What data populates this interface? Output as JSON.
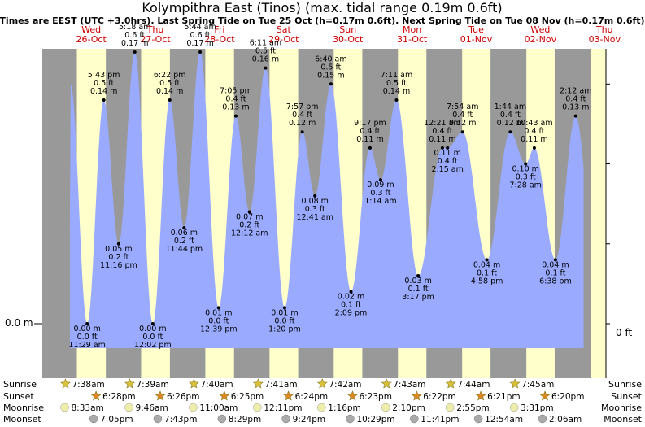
{
  "chart_data": {
    "type": "area",
    "title": "Kolympithra East (Tinos) (max. tidal range 0.19m 0.6ft)",
    "subtitle": "Times are EEST (UTC +3.0hrs). Last Spring Tide on Tue 25 Oct (h=0.17m 0.6ft). Next Spring Tide on Tue 08 Nov (h=0.17m 0.6ft)",
    "ylabel_left": "0.0 m",
    "ylabel_right": "0 ft",
    "colors": {
      "night": "#999999",
      "day": "#ffffcc",
      "water": "#99aaff",
      "header_day": "#cc0000",
      "sun_star": "#d9c23a",
      "set_star": "#d98a26",
      "moon_light": "#eeeeaa",
      "moon_dark": "#aaaaaa"
    },
    "days": [
      {
        "dow": "Wed",
        "date": "26-Oct"
      },
      {
        "dow": "Thu",
        "date": "27-Oct"
      },
      {
        "dow": "Fri",
        "date": "28-Oct"
      },
      {
        "dow": "Sat",
        "date": "29-Oct"
      },
      {
        "dow": "Sun",
        "date": "30-Oct"
      },
      {
        "dow": "Mon",
        "date": "31-Oct"
      },
      {
        "dow": "Tue",
        "date": "01-Nov"
      },
      {
        "dow": "Wed",
        "date": "02-Nov"
      },
      {
        "dow": "Thu",
        "date": "03-Nov"
      }
    ],
    "tides": [
      {
        "t": "2022-10-26 11:29",
        "h": 0.0,
        "m": "0.00 m",
        "ft": "0.0 ft",
        "time": "11:29 am",
        "type": "low"
      },
      {
        "t": "2022-10-26 17:43",
        "h": 0.14,
        "m": "0.14 m",
        "ft": "0.5 ft",
        "time": "5:43 pm",
        "type": "high"
      },
      {
        "t": "2022-10-26 23:16",
        "h": 0.05,
        "m": "0.05 m",
        "ft": "0.2 ft",
        "time": "11:16 pm",
        "type": "low"
      },
      {
        "t": "2022-10-27 05:18",
        "h": 0.17,
        "m": "0.17 m",
        "ft": "0.6 ft",
        "time": "5:18 am",
        "type": "high"
      },
      {
        "t": "2022-10-27 12:02",
        "h": 0.0,
        "m": "0.00 m",
        "ft": "0.0 ft",
        "time": "12:02 pm",
        "type": "low"
      },
      {
        "t": "2022-10-27 18:22",
        "h": 0.14,
        "m": "0.14 m",
        "ft": "0.5 ft",
        "time": "6:22 pm",
        "type": "high"
      },
      {
        "t": "2022-10-27 23:44",
        "h": 0.06,
        "m": "0.06 m",
        "ft": "0.2 ft",
        "time": "11:44 pm",
        "type": "low"
      },
      {
        "t": "2022-10-28 05:44",
        "h": 0.17,
        "m": "0.17 m",
        "ft": "0.6 ft",
        "time": "5:44 am",
        "type": "high"
      },
      {
        "t": "2022-10-28 12:39",
        "h": 0.01,
        "m": "0.01 m",
        "ft": "0.0 ft",
        "time": "12:39 pm",
        "type": "low"
      },
      {
        "t": "2022-10-28 19:05",
        "h": 0.13,
        "m": "0.13 m",
        "ft": "0.4 ft",
        "time": "7:05 pm",
        "type": "high"
      },
      {
        "t": "2022-10-29 00:12",
        "h": 0.07,
        "m": "0.07 m",
        "ft": "0.2 ft",
        "time": "12:12 am",
        "type": "low"
      },
      {
        "t": "2022-10-29 06:11",
        "h": 0.16,
        "m": "0.16 m",
        "ft": "0.5 ft",
        "time": "6:11 am",
        "type": "high"
      },
      {
        "t": "2022-10-29 13:20",
        "h": 0.01,
        "m": "0.01 m",
        "ft": "0.0 ft",
        "time": "1:20 pm",
        "type": "low"
      },
      {
        "t": "2022-10-29 19:57",
        "h": 0.12,
        "m": "0.12 m",
        "ft": "0.4 ft",
        "time": "7:57 pm",
        "type": "high"
      },
      {
        "t": "2022-10-30 00:41",
        "h": 0.08,
        "m": "0.08 m",
        "ft": "0.3 ft",
        "time": "12:41 am",
        "type": "low"
      },
      {
        "t": "2022-10-30 06:40",
        "h": 0.15,
        "m": "0.15 m",
        "ft": "0.5 ft",
        "time": "6:40 am",
        "type": "high"
      },
      {
        "t": "2022-10-30 14:09",
        "h": 0.02,
        "m": "0.02 m",
        "ft": "0.1 ft",
        "time": "2:09 pm",
        "type": "low"
      },
      {
        "t": "2022-10-30 21:17",
        "h": 0.11,
        "m": "0.11 m",
        "ft": "0.4 ft",
        "time": "9:17 pm",
        "type": "high"
      },
      {
        "t": "2022-10-31 01:14",
        "h": 0.09,
        "m": "0.09 m",
        "ft": "0.3 ft",
        "time": "1:14 am",
        "type": "low"
      },
      {
        "t": "2022-10-31 07:11",
        "h": 0.14,
        "m": "0.14 m",
        "ft": "0.5 ft",
        "time": "7:11 am",
        "type": "high"
      },
      {
        "t": "2022-10-31 15:17",
        "h": 0.03,
        "m": "0.03 m",
        "ft": "0.1 ft",
        "time": "3:17 pm",
        "type": "low"
      },
      {
        "t": "2022-11-01 00:21",
        "h": 0.11,
        "m": "0.11 m",
        "ft": "0.4 ft",
        "time": "12:21 am",
        "type": "high"
      },
      {
        "t": "2022-11-01 02:15",
        "h": 0.11,
        "m": "0.11 m",
        "ft": "0.4 ft",
        "time": "2:15 am",
        "type": "low"
      },
      {
        "t": "2022-11-01 07:54",
        "h": 0.12,
        "m": "0.12 m",
        "ft": "0.4 ft",
        "time": "7:54 am",
        "type": "high"
      },
      {
        "t": "2022-11-01 16:58",
        "h": 0.04,
        "m": "0.04 m",
        "ft": "0.1 ft",
        "time": "4:58 pm",
        "type": "low"
      },
      {
        "t": "2022-11-02 01:44",
        "h": 0.12,
        "m": "0.12 m",
        "ft": "0.4 ft",
        "time": "1:44 am",
        "type": "high"
      },
      {
        "t": "2022-11-02 07:28",
        "h": 0.1,
        "m": "0.10 m",
        "ft": "0.3 ft",
        "time": "7:28 am",
        "type": "low"
      },
      {
        "t": "2022-11-02 10:43",
        "h": 0.11,
        "m": "0.11 m",
        "ft": "0.4 ft",
        "time": "10:43 am",
        "type": "high"
      },
      {
        "t": "2022-11-02 18:38",
        "h": 0.04,
        "m": "0.04 m",
        "ft": "0.1 ft",
        "time": "6:38 pm",
        "type": "low"
      },
      {
        "t": "2022-11-03 02:12",
        "h": 0.13,
        "m": "0.13 m",
        "ft": "0.4 ft",
        "time": "2:12 am",
        "type": "high"
      }
    ],
    "astro": [
      {
        "sunrise": "7:38am",
        "sunset": "6:28pm",
        "moonrise": "8:33am",
        "moonset": "7:05pm"
      },
      {
        "sunrise": "7:39am",
        "sunset": "6:26pm",
        "moonrise": "9:46am",
        "moonset": "7:43pm"
      },
      {
        "sunrise": "7:40am",
        "sunset": "6:25pm",
        "moonrise": "11:00am",
        "moonset": "8:29pm"
      },
      {
        "sunrise": "7:41am",
        "sunset": "6:24pm",
        "moonrise": "12:11pm",
        "moonset": "9:24pm"
      },
      {
        "sunrise": "7:42am",
        "sunset": "6:23pm",
        "moonrise": "1:16pm",
        "moonset": "10:29pm"
      },
      {
        "sunrise": "7:43am",
        "sunset": "6:22pm",
        "moonrise": "2:10pm",
        "moonset": "11:41pm"
      },
      {
        "sunrise": "7:44am",
        "sunset": "6:21pm",
        "moonrise": "2:55pm",
        "moonset": "12:54am"
      },
      {
        "sunrise": "7:45am",
        "sunset": "6:20pm",
        "moonrise": "3:31pm",
        "moonset": "2:06am"
      }
    ],
    "row_labels": {
      "sunrise": "Sunrise",
      "sunset": "Sunset",
      "moonrise": "Moonrise",
      "moonset": "Moonset"
    },
    "day_bands": [
      {
        "rise": "2022-10-26 07:38",
        "set": "2022-10-26 18:28"
      },
      {
        "rise": "2022-10-27 07:39",
        "set": "2022-10-27 18:26"
      },
      {
        "rise": "2022-10-28 07:40",
        "set": "2022-10-28 18:25"
      },
      {
        "rise": "2022-10-29 07:41",
        "set": "2022-10-29 18:24"
      },
      {
        "rise": "2022-10-30 07:42",
        "set": "2022-10-30 18:23"
      },
      {
        "rise": "2022-10-31 07:43",
        "set": "2022-10-31 18:22"
      },
      {
        "rise": "2022-11-01 07:44",
        "set": "2022-11-01 18:21"
      },
      {
        "rise": "2022-11-02 07:45",
        "set": "2022-11-02 18:20"
      },
      {
        "rise": "2022-11-03 07:46",
        "set": "2022-11-03 18:19"
      }
    ],
    "x_range": [
      "2022-10-25 18:42",
      "2022-11-03 12:00"
    ],
    "curve_range": [
      "2022-10-26 05:00",
      "2022-11-03 05:10"
    ],
    "ylim": [
      -0.023,
      0.2
    ]
  }
}
